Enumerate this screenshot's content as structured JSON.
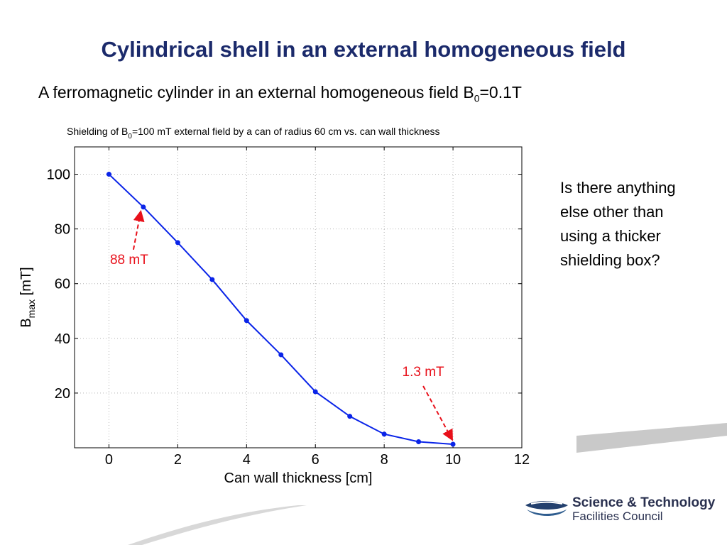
{
  "slide": {
    "title": "Cylindrical shell in an external homogeneous field",
    "subtitle_main": "A ferromagnetic cylinder in an external homogeneous field B",
    "subtitle_sub": "0",
    "subtitle_tail": "=0.1T",
    "side_note": "Is there anything else other than using a thicker shielding box?"
  },
  "logo": {
    "line1": "Science & Technology",
    "line2": "Facilities Council",
    "icon": "stfc-logo-icon"
  },
  "chart_data": {
    "type": "line",
    "title_main": "Shielding of B",
    "title_sub": "0",
    "title_tail": "=100 mT external field by a can of radius 60 cm vs. can wall thickness",
    "xlabel": "Can wall thickness [cm]",
    "ylabel_main": "B",
    "ylabel_sub": "max",
    "ylabel_tail": " [mT]",
    "xlim": [
      -1,
      12
    ],
    "ylim": [
      0,
      110
    ],
    "x_ticks": [
      0,
      2,
      4,
      6,
      8,
      10,
      12
    ],
    "y_ticks": [
      20,
      40,
      60,
      80,
      100
    ],
    "grid": true,
    "line_color": "#0a24e8",
    "annotation_color": "#e8101a",
    "series": [
      {
        "x": [
          0,
          1,
          2,
          3,
          4,
          5,
          6,
          7,
          8,
          9,
          10
        ],
        "y": [
          100,
          88,
          75,
          61.5,
          46.5,
          34,
          20.5,
          11.5,
          5,
          2.2,
          1.3
        ]
      }
    ],
    "annotations": [
      {
        "text": "88 mT",
        "x": 1,
        "y": 88
      },
      {
        "text": "1.3 mT",
        "x": 10,
        "y": 1.3
      }
    ]
  }
}
